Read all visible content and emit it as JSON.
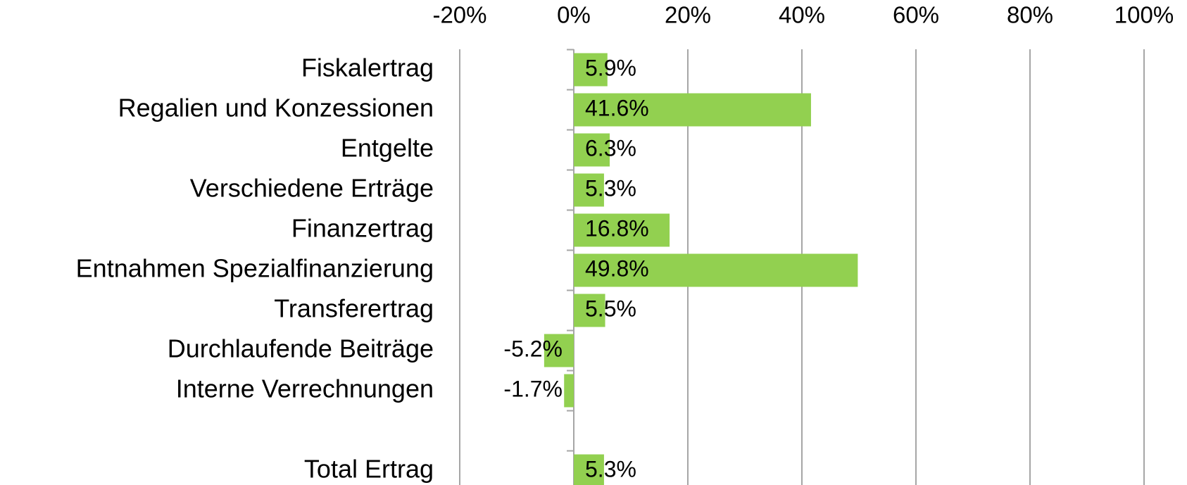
{
  "chart_data": {
    "type": "hbar",
    "categories": [
      "Fiskalertrag",
      "Regalien und Konzessionen",
      "Entgelte",
      "Verschiedene Erträge",
      "Finanzertrag",
      "Entnahmen Spezialfinanzierung",
      "Transferertrag",
      "Durchlaufende Beiträge",
      "Interne Verrechnungen",
      null,
      "Total Ertrag"
    ],
    "values": [
      5.9,
      41.6,
      6.3,
      5.3,
      16.8,
      49.8,
      5.5,
      -5.2,
      -1.7,
      null,
      5.3
    ],
    "value_labels": [
      "5.9%",
      "41.6%",
      "6.3%",
      "5.3%",
      "16.8%",
      "49.8%",
      "5.5%",
      "-5.2%",
      "-1.7%",
      null,
      "5.3%"
    ],
    "color": "#92d050",
    "xlim": [
      -20,
      100
    ],
    "xticks": [
      {
        "value": -20,
        "label": "-20%"
      },
      {
        "value": 0,
        "label": "0%"
      },
      {
        "value": 20,
        "label": "20%"
      },
      {
        "value": 40,
        "label": "40%"
      },
      {
        "value": 60,
        "label": "60%"
      },
      {
        "value": 80,
        "label": "80%"
      },
      {
        "value": 100,
        "label": "100%"
      }
    ],
    "grid": true
  }
}
